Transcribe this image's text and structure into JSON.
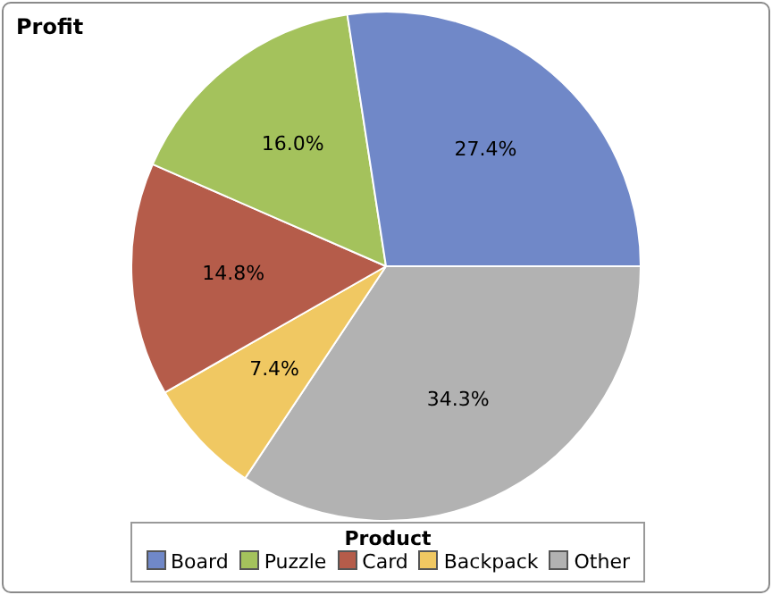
{
  "chart_data": {
    "type": "pie",
    "title": "Profit",
    "legend_title": "Product",
    "legend": "bottom",
    "categories": [
      "Board",
      "Puzzle",
      "Card",
      "Backpack",
      "Other"
    ],
    "values": [
      27.4,
      16.0,
      14.8,
      7.4,
      34.3
    ],
    "colors": [
      "#7088c8",
      "#a4c25c",
      "#b55c4a",
      "#f0c862",
      "#b2b2b2"
    ],
    "value_labels": [
      "27.4%",
      "16.0%",
      "14.8%",
      "7.4%",
      "34.3%"
    ]
  }
}
